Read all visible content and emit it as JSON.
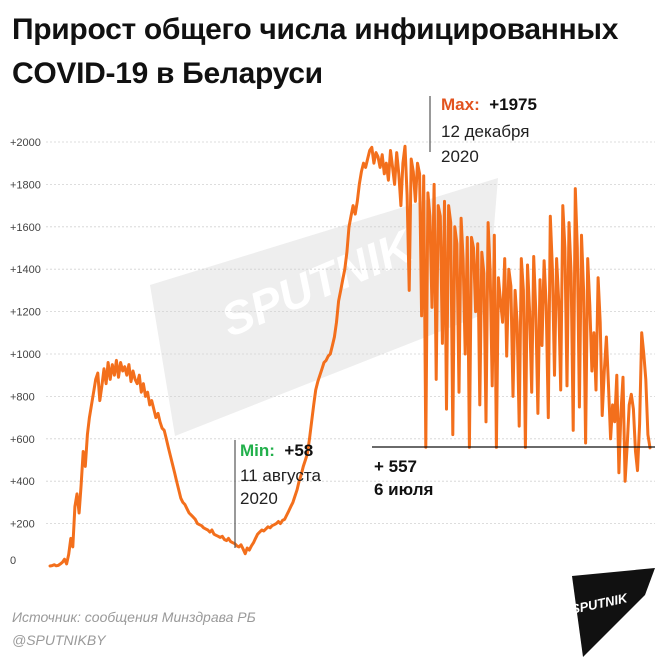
{
  "title": "Прирост общего числа инфицированных COVID-19 в Беларуси",
  "watermark": "SPUTNIK",
  "brand": "SPUTNIK",
  "source": "Источник: сообщения Минздрава РБ",
  "handle": "@SPUTNIKBY",
  "colors": {
    "line": "#F36F1C",
    "max": "#E2531F",
    "min": "#22B04B",
    "grid": "#d2d2d2"
  },
  "annotations": {
    "max": {
      "label": "Max:",
      "value": "+1975",
      "date_line1": "12 декабря",
      "date_line2": "2020"
    },
    "min": {
      "label": "Min:",
      "value": "+58",
      "date_line1": "11 августа",
      "date_line2": "2020"
    },
    "last": {
      "value": "+ 557",
      "date": "6 июля"
    }
  },
  "chart_data": {
    "type": "line",
    "title": "Прирост общего числа инфицированных COVID-19 в Беларуси",
    "xlabel": "",
    "ylabel": "",
    "ylim": [
      0,
      2000
    ],
    "yticks": [
      0,
      200,
      400,
      600,
      800,
      1000,
      1200,
      1400,
      1600,
      1800,
      2000
    ],
    "ytick_labels": [
      "0",
      "+200",
      "+400",
      "+600",
      "+800",
      "+1000",
      "+1200",
      "+1400",
      "+1600",
      "+1800",
      "+2000"
    ],
    "grid": true,
    "x_range": [
      "2020-03-01",
      "2021-07-06"
    ],
    "series": [
      {
        "values": [
          0,
          2,
          6,
          1,
          3,
          10,
          18,
          32,
          10,
          55,
          130,
          90,
          280,
          340,
          250,
          380,
          540,
          470,
          620,
          700,
          760,
          820,
          880,
          910,
          780,
          850,
          930,
          860,
          960,
          880,
          950,
          900,
          970,
          890,
          960,
          920,
          940,
          900,
          950,
          870,
          920,
          880,
          860,
          900,
          820,
          860,
          800,
          820,
          760,
          780,
          740,
          700,
          720,
          680,
          650,
          640,
          600,
          560,
          520,
          480,
          440,
          400,
          360,
          320,
          300,
          290,
          270,
          250,
          240,
          230,
          220,
          200,
          195,
          190,
          180,
          175,
          170,
          160,
          170,
          150,
          145,
          140,
          135,
          140,
          125,
          120,
          130,
          115,
          110,
          105,
          95,
          90,
          100,
          80,
          58,
          85,
          75,
          95,
          110,
          130,
          150,
          160,
          170,
          165,
          175,
          185,
          180,
          190,
          195,
          200,
          210,
          200,
          215,
          220,
          240,
          260,
          280,
          300,
          330,
          360,
          400,
          430,
          470,
          500,
          530,
          600,
          680,
          760,
          830,
          870,
          900,
          930,
          960,
          970,
          990,
          1000,
          1040,
          1080,
          1150,
          1250,
          1300,
          1350,
          1400,
          1480,
          1600,
          1650,
          1700,
          1660,
          1720,
          1800,
          1860,
          1900,
          1880,
          1920,
          1960,
          1975,
          1900,
          1950,
          1930,
          1880,
          1940,
          1850,
          1900,
          1820,
          1960,
          1880,
          1800,
          1950,
          1850,
          1700,
          1900,
          1980,
          1750,
          1300,
          1920,
          1860,
          1720,
          1900,
          1850,
          1180,
          1840,
          560,
          1760,
          1650,
          1220,
          1800,
          880,
          1700,
          1650,
          1050,
          1720,
          740,
          1700,
          1620,
          620,
          1600,
          1520,
          820,
          1640,
          1450,
          1000,
          1550,
          560,
          1550,
          1500,
          1200,
          1520,
          760,
          1480,
          1380,
          680,
          1620,
          1400,
          850,
          1560,
          560,
          1360,
          1250,
          1150,
          1450,
          990,
          1400,
          1320,
          800,
          1300,
          1150,
          660,
          1450,
          1300,
          560,
          1420,
          1200,
          820,
          1460,
          1200,
          720,
          1350,
          1040,
          1440,
          1230,
          700,
          1650,
          1400,
          900,
          1450,
          1250,
          830,
          1700,
          1500,
          850,
          1620,
          1380,
          640,
          1780,
          1500,
          750,
          1560,
          1300,
          580,
          1450,
          1230,
          920,
          1100,
          830,
          1360,
          1150,
          710,
          920,
          1080,
          850,
          600,
          760,
          680,
          900,
          440,
          720,
          890,
          400,
          570,
          760,
          810,
          740,
          540,
          450,
          670,
          1100,
          1000,
          880,
          620,
          557
        ]
      }
    ]
  }
}
